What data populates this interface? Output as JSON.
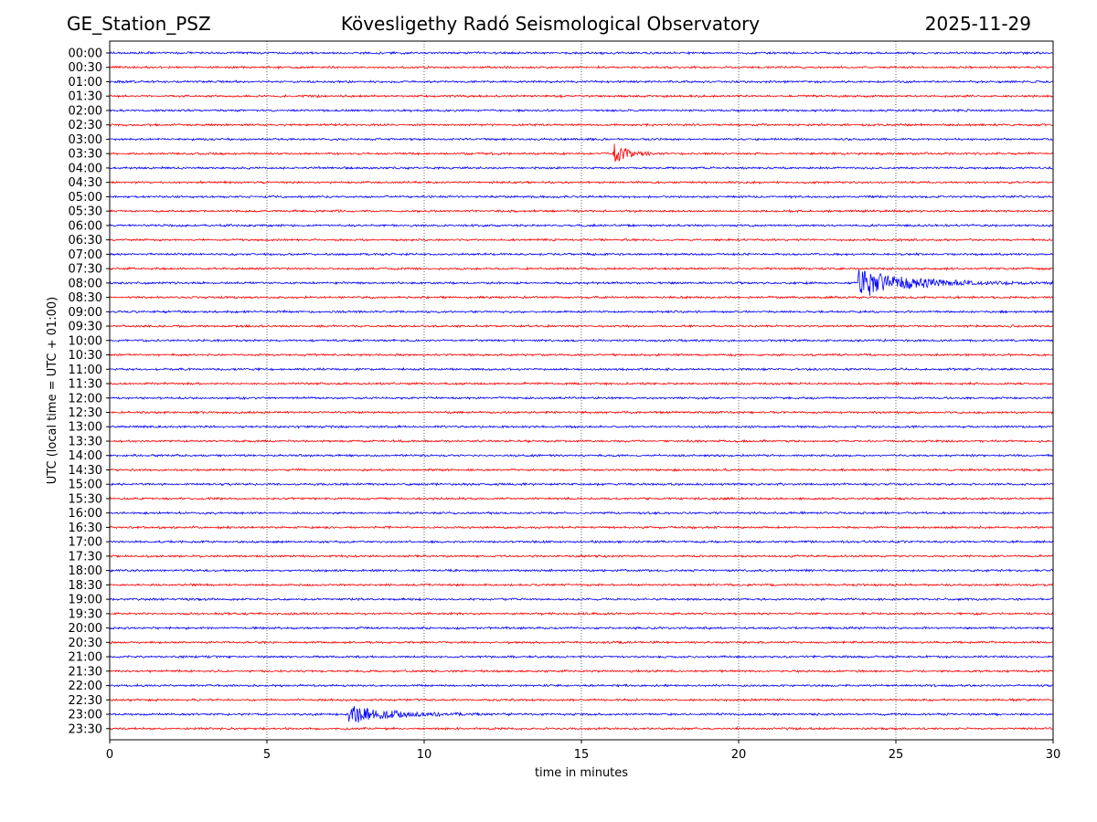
{
  "header": {
    "station": "GE_Station_PSZ",
    "title": "Kövesligethy Radó Seismological Observatory",
    "date": "2025-11-29"
  },
  "chart_data": {
    "type": "line",
    "title": "Kövesligethy Radó Seismological Observatory",
    "xlabel": "time in minutes",
    "ylabel": "UTC (local time = UTC + 01:00)",
    "xlim": [
      0,
      30
    ],
    "xticks": [
      0,
      5,
      10,
      15,
      20,
      25,
      30
    ],
    "grid": "vertical dotted at 5-minute ticks",
    "row_labels": [
      "00:00",
      "00:30",
      "01:00",
      "01:30",
      "02:00",
      "02:30",
      "03:00",
      "03:30",
      "04:00",
      "04:30",
      "05:00",
      "05:30",
      "06:00",
      "06:30",
      "07:00",
      "07:30",
      "08:00",
      "08:30",
      "09:00",
      "09:30",
      "10:00",
      "10:30",
      "11:00",
      "11:30",
      "12:00",
      "12:30",
      "13:00",
      "13:30",
      "14:00",
      "14:30",
      "15:00",
      "15:30",
      "16:00",
      "16:30",
      "17:00",
      "17:30",
      "18:00",
      "18:30",
      "19:00",
      "19:30",
      "20:00",
      "20:30",
      "21:00",
      "21:30",
      "22:00",
      "22:30",
      "23:00",
      "23:30"
    ],
    "trace_colors": [
      "#0000ff",
      "#ff0000"
    ],
    "noise_amplitude": 0.06,
    "events": [
      {
        "row": "03:30",
        "onset_min": 16.0,
        "duration_min": 1.8,
        "amplitude": 0.75
      },
      {
        "row": "08:00",
        "onset_min": 23.8,
        "duration_min": 6.5,
        "amplitude": 1.0
      },
      {
        "row": "23:00",
        "onset_min": 7.6,
        "duration_min": 4.5,
        "amplitude": 0.7
      }
    ]
  }
}
